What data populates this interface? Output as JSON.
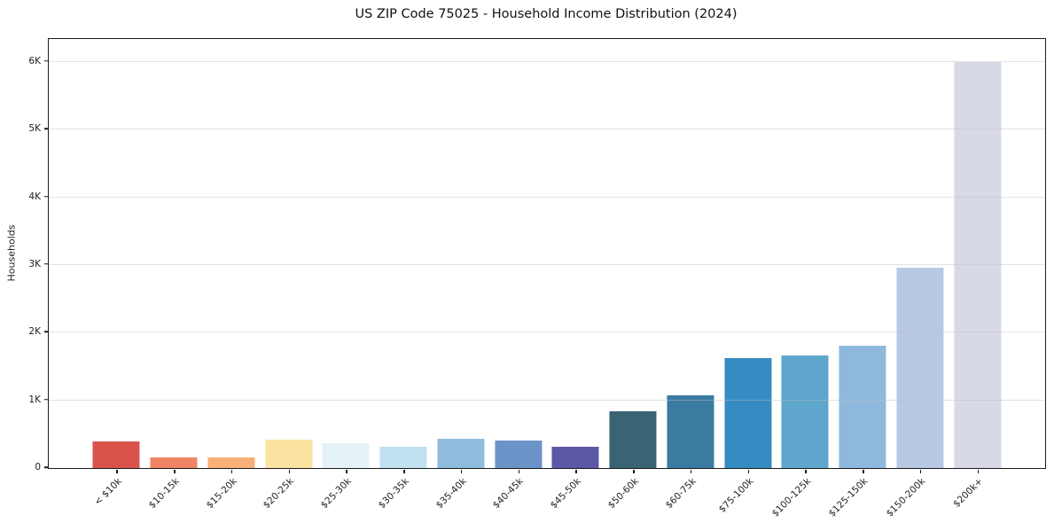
{
  "chart_data": {
    "type": "bar",
    "title": "US ZIP Code 75025 - Household Income Distribution (2024)",
    "xlabel": "",
    "ylabel": "Households",
    "categories": [
      "< $10k",
      "$10-15k",
      "$15-20k",
      "$20-25k",
      "$25-30k",
      "$30-35k",
      "$35-40k",
      "$40-45k",
      "$45-50k",
      "$50-60k",
      "$60-75k",
      "$75-100k",
      "$100-125k",
      "$125-150k",
      "$150-200k",
      "$200k+"
    ],
    "values": [
      395,
      155,
      160,
      420,
      365,
      315,
      435,
      400,
      315,
      840,
      1075,
      1620,
      1670,
      1810,
      2960,
      6000
    ],
    "bar_colors": [
      "#d9534d",
      "#f08566",
      "#f7b077",
      "#fce2a0",
      "#e4f2f8",
      "#c0e1ef",
      "#8fbcdd",
      "#6b93c8",
      "#5b58a8",
      "#3a6474",
      "#3a7ba1",
      "#358bc2",
      "#5fa6cc",
      "#8fb9dc",
      "#b7c9e3",
      "#d8d9e7"
    ],
    "ylim": [
      0,
      6340
    ],
    "yticks": [
      {
        "value": 0,
        "label": "0"
      },
      {
        "value": 1000,
        "label": "1K"
      },
      {
        "value": 2000,
        "label": "2K"
      },
      {
        "value": 3000,
        "label": "3K"
      },
      {
        "value": 4000,
        "label": "4K"
      },
      {
        "value": 5000,
        "label": "5K"
      },
      {
        "value": 6000,
        "label": "6K"
      }
    ],
    "grid": "horizontal",
    "legend": "none",
    "plot_background": "#ffffff",
    "spine_color": "#1c1c1c",
    "gridline_color": "#e2e2e2",
    "x_tick_rotation_deg": 45
  }
}
